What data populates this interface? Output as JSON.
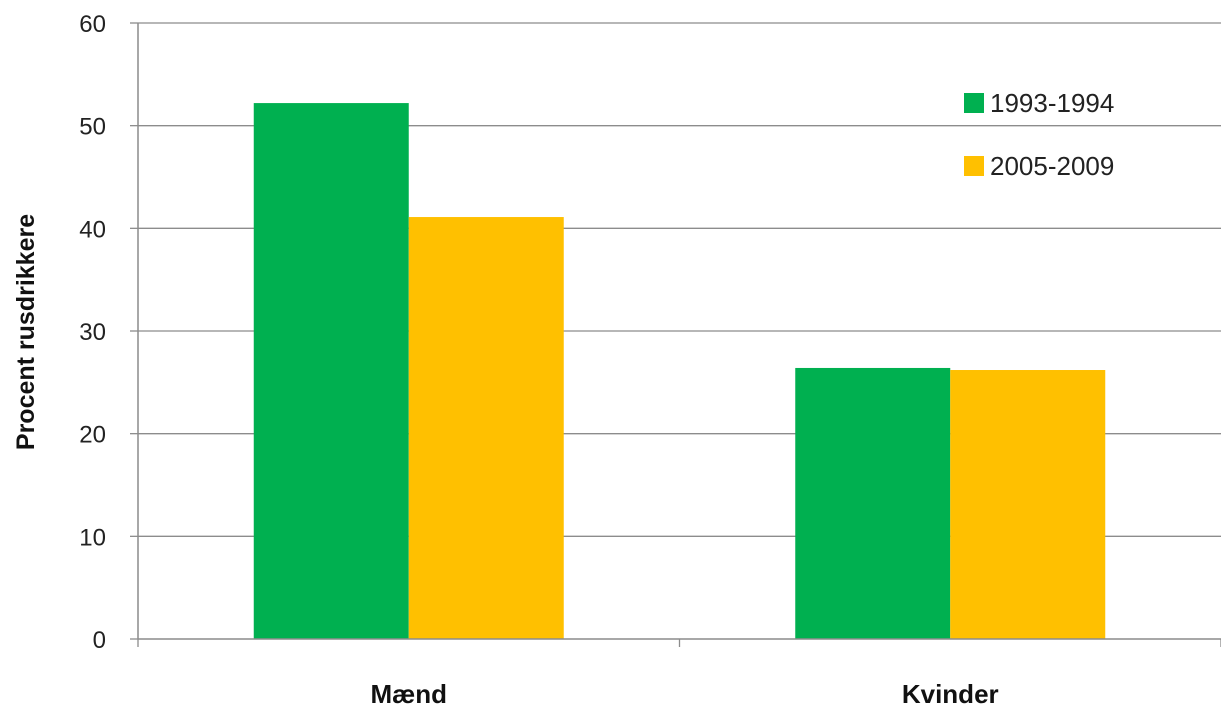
{
  "chart_data": {
    "type": "bar",
    "title": "",
    "xlabel": "",
    "ylabel": "Procent rusdrikkere",
    "categories": [
      "Mænd",
      "Kvinder"
    ],
    "series": [
      {
        "name": "1993-1994",
        "values": [
          52.2,
          26.4
        ],
        "color": "#00b050"
      },
      {
        "name": "2005-2009",
        "values": [
          41.1,
          26.2
        ],
        "color": "#ffc000"
      }
    ],
    "ylim": [
      0,
      60
    ],
    "yticks": [
      0,
      10,
      20,
      30,
      40,
      50,
      60
    ],
    "grid": true,
    "legend_position": "top-right"
  }
}
